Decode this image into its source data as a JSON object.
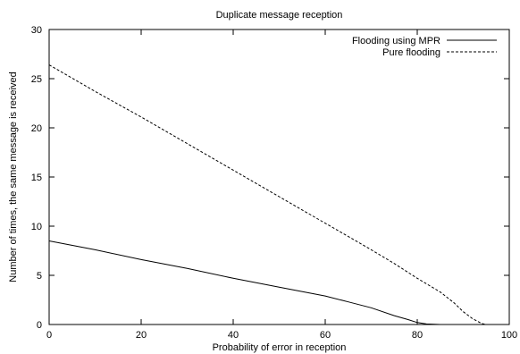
{
  "chart_data": {
    "type": "line",
    "title": "Duplicate message reception",
    "xlabel": "Probability of error in reception",
    "ylabel": "Number of times, the same message is received",
    "xlim": [
      0,
      100
    ],
    "ylim": [
      0,
      30
    ],
    "xticks": [
      0,
      20,
      40,
      60,
      80,
      100
    ],
    "yticks": [
      0,
      5,
      10,
      15,
      20,
      25,
      30
    ],
    "grid": false,
    "legend_position": "top-right",
    "series": [
      {
        "name": "Flooding using MPR",
        "style": "solid",
        "color": "#000000",
        "x": [
          0,
          10,
          20,
          30,
          40,
          50,
          60,
          65,
          70,
          75,
          78,
          80,
          82,
          85,
          88,
          90,
          95
        ],
        "y": [
          8.5,
          7.6,
          6.6,
          5.7,
          4.7,
          3.8,
          2.9,
          2.3,
          1.7,
          0.9,
          0.5,
          0.2,
          0.05,
          0.0,
          0.0,
          0.0,
          0.0
        ]
      },
      {
        "name": "Pure flooding",
        "style": "dashed",
        "color": "#000000",
        "x": [
          0,
          10,
          20,
          30,
          40,
          50,
          60,
          70,
          75,
          80,
          85,
          88,
          90,
          92,
          94,
          95
        ],
        "y": [
          26.4,
          23.7,
          21.1,
          18.4,
          15.7,
          13.0,
          10.3,
          7.6,
          6.2,
          4.7,
          3.3,
          2.2,
          1.3,
          0.6,
          0.1,
          0.0
        ]
      }
    ]
  }
}
